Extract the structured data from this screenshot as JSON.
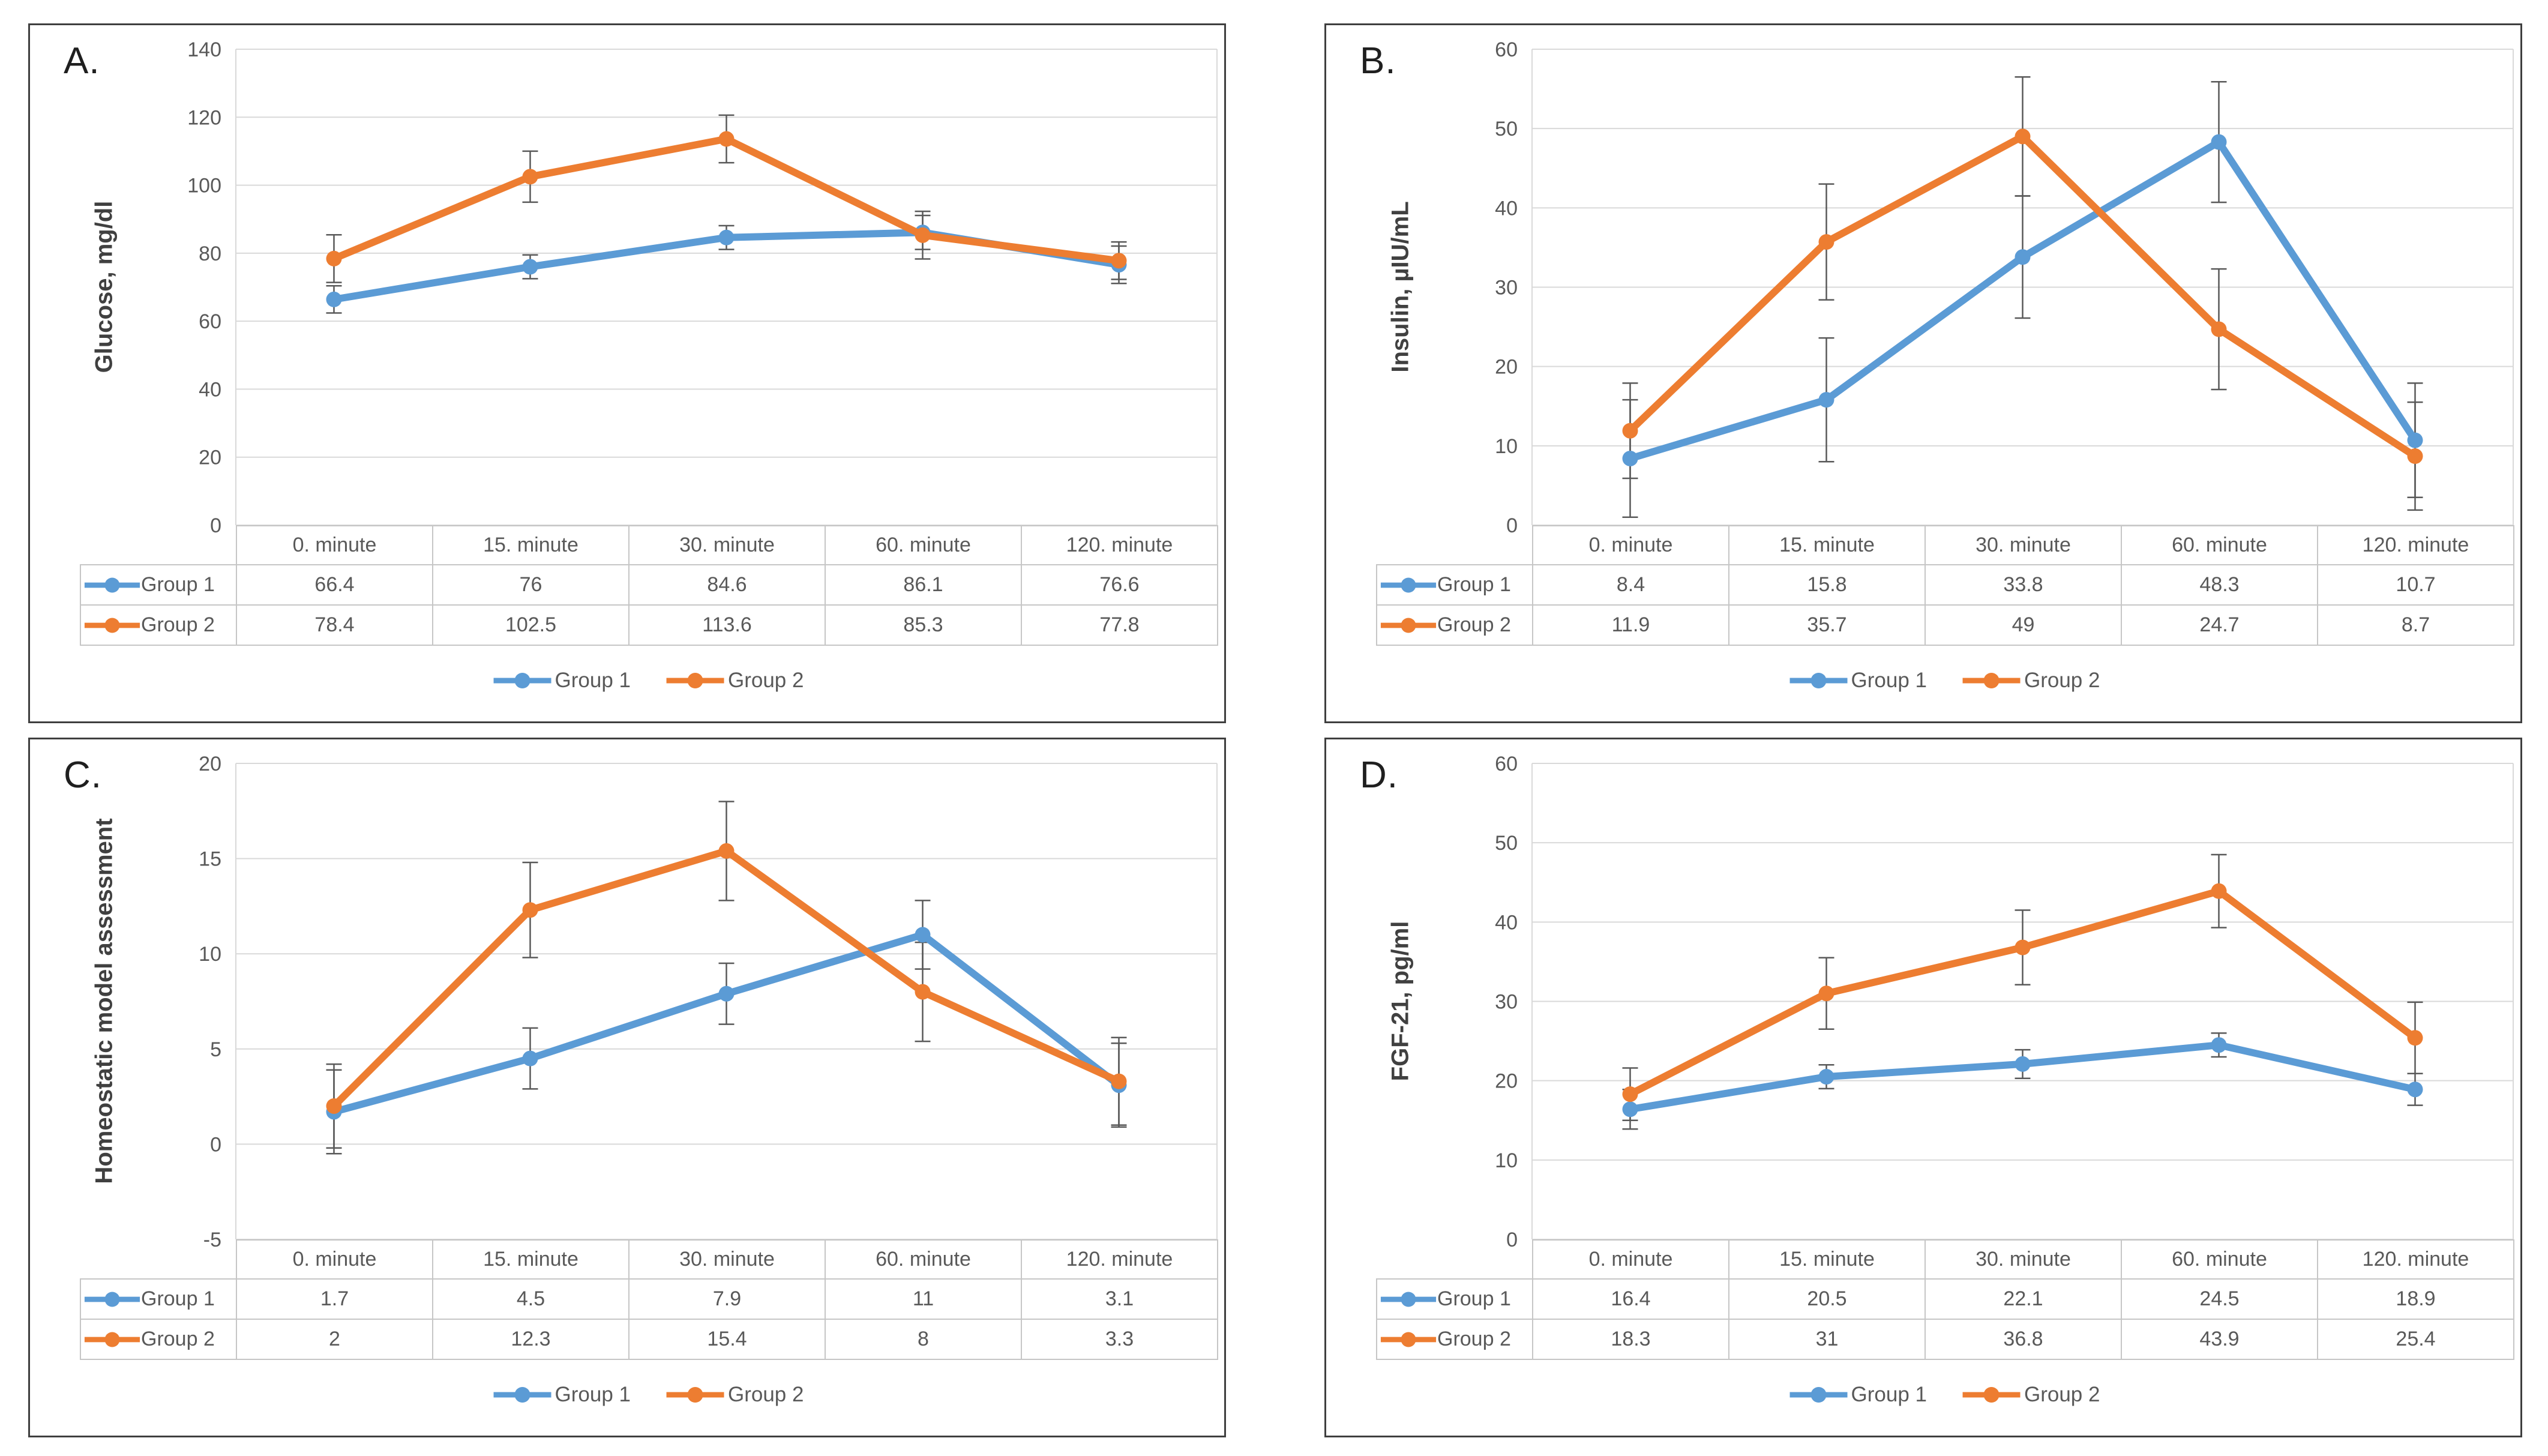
{
  "style": {
    "accent_blue": "#5B9BD5",
    "accent_orange": "#ED7D31",
    "grid_color": "#D9D9D9",
    "error_bar_color": "#595959",
    "tick_label_color": "#595959",
    "table_text_color": "#595959",
    "ylabel_color": "#404040",
    "panel_border_color": "#3F3F3F",
    "background": "#FFFFFF"
  },
  "legend_labels": [
    "Group 1",
    "Group 2"
  ],
  "chart_data": [
    {
      "type": "line",
      "letter": "A.",
      "title": "A.",
      "ylabel": "Glucose, mg/dl",
      "xlabel": "",
      "ylim": [
        0,
        140
      ],
      "ytick_step": 20,
      "grid": true,
      "legend_position": "bottom",
      "categories": [
        "0. minute",
        "15. minute",
        "30. minute",
        "60. minute",
        "120. minute"
      ],
      "series": [
        {
          "name": "Group 1",
          "color": "#5B9BD5",
          "values": [
            66.4,
            76,
            84.6,
            86.1,
            76.6
          ],
          "errors": [
            4,
            3.5,
            3.5,
            5,
            5.5
          ]
        },
        {
          "name": "Group 2",
          "color": "#ED7D31",
          "values": [
            78.4,
            102.5,
            113.6,
            85.3,
            77.8
          ],
          "errors": [
            7,
            7.5,
            7,
            7,
            5.5
          ]
        }
      ]
    },
    {
      "type": "line",
      "letter": "B.",
      "title": "B.",
      "ylabel": "Insulin, µIU/mL",
      "xlabel": "",
      "ylim": [
        0,
        60
      ],
      "ytick_step": 10,
      "grid": true,
      "legend_position": "bottom",
      "categories": [
        "0. minute",
        "15. minute",
        "30. minute",
        "60. minute",
        "120. minute"
      ],
      "series": [
        {
          "name": "Group 1",
          "color": "#5B9BD5",
          "values": [
            8.4,
            15.8,
            33.8,
            48.3,
            10.7
          ],
          "errors": [
            7.4,
            7.8,
            7.7,
            7.6,
            7.2
          ]
        },
        {
          "name": "Group 2",
          "color": "#ED7D31",
          "values": [
            11.9,
            35.7,
            49,
            24.7,
            8.7
          ],
          "errors": [
            6,
            7.3,
            7.5,
            7.6,
            6.8
          ]
        }
      ]
    },
    {
      "type": "line",
      "letter": "C.",
      "title": "C.",
      "ylabel": "Homeostatic model assessment",
      "xlabel": "",
      "ylim": [
        -5,
        20
      ],
      "ytick_step": 5,
      "grid": true,
      "legend_position": "bottom",
      "categories": [
        "0. minute",
        "15. minute",
        "30. minute",
        "60. minute",
        "120. minute"
      ],
      "series": [
        {
          "name": "Group 1",
          "color": "#5B9BD5",
          "values": [
            1.7,
            4.5,
            7.9,
            11,
            3.1
          ],
          "errors": [
            2.2,
            1.6,
            1.6,
            1.8,
            2.2
          ]
        },
        {
          "name": "Group 2",
          "color": "#ED7D31",
          "values": [
            2,
            12.3,
            15.4,
            8,
            3.3
          ],
          "errors": [
            2.2,
            2.5,
            2.6,
            2.6,
            2.3
          ]
        }
      ]
    },
    {
      "type": "line",
      "letter": "D.",
      "title": "D.",
      "ylabel": "FGF-21, pg/ml",
      "xlabel": "",
      "ylim": [
        0,
        60
      ],
      "ytick_step": 10,
      "grid": true,
      "legend_position": "bottom",
      "categories": [
        "0. minute",
        "15. minute",
        "30. minute",
        "60. minute",
        "120. minute"
      ],
      "series": [
        {
          "name": "Group 1",
          "color": "#5B9BD5",
          "values": [
            16.4,
            20.5,
            22.1,
            24.5,
            18.9
          ],
          "errors": [
            2.5,
            1.5,
            1.8,
            1.5,
            2
          ]
        },
        {
          "name": "Group 2",
          "color": "#ED7D31",
          "values": [
            18.3,
            31,
            36.8,
            43.9,
            25.4
          ],
          "errors": [
            3.3,
            4.5,
            4.7,
            4.6,
            4.5
          ]
        }
      ]
    }
  ]
}
